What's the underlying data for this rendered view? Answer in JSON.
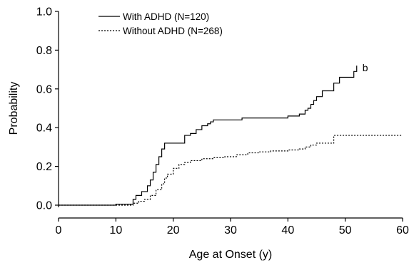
{
  "chart_data": {
    "type": "line",
    "title": "",
    "xlabel": "Age at Onset (y)",
    "ylabel": "Probability",
    "xlim": [
      0,
      60
    ],
    "ylim": [
      0,
      1.0
    ],
    "xticks": [
      0,
      10,
      20,
      30,
      40,
      50,
      60
    ],
    "yticks": [
      0.0,
      0.2,
      0.4,
      0.6,
      0.8,
      1.0
    ],
    "xtick_labels": [
      "0",
      "10",
      "20",
      "30",
      "40",
      "50",
      "60"
    ],
    "ytick_labels": [
      "0.0",
      "0.2",
      "0.4",
      "0.6",
      "0.8",
      "1.0"
    ],
    "grid": false,
    "legend_position": "top-left",
    "step": true,
    "annotation": {
      "text": "b",
      "x": 53,
      "y": 0.71
    },
    "series": [
      {
        "name": "With ADHD (N=120)",
        "line_style": "solid",
        "color": "#000000",
        "x": [
          0,
          10,
          13,
          13.5,
          14.5,
          15.5,
          16,
          16.5,
          17,
          17.5,
          18,
          18.5,
          19,
          20,
          22,
          23,
          24,
          25,
          26,
          26.5,
          27,
          28,
          32,
          40,
          42,
          43,
          43.5,
          44,
          44.5,
          45,
          46,
          48,
          49,
          51.5,
          52
        ],
        "y": [
          0.0,
          0.005,
          0.03,
          0.05,
          0.07,
          0.1,
          0.13,
          0.17,
          0.21,
          0.25,
          0.29,
          0.32,
          0.32,
          0.32,
          0.36,
          0.37,
          0.39,
          0.41,
          0.42,
          0.43,
          0.44,
          0.44,
          0.45,
          0.46,
          0.47,
          0.49,
          0.5,
          0.52,
          0.54,
          0.56,
          0.59,
          0.63,
          0.66,
          0.69,
          0.72
        ]
      },
      {
        "name": "Without ADHD (N=268)",
        "line_style": "dotted",
        "color": "#000000",
        "x": [
          0,
          10,
          13,
          14,
          15,
          16,
          17,
          18,
          18.5,
          19,
          20,
          21,
          22,
          23,
          25,
          27,
          29,
          31,
          33,
          35,
          37,
          40,
          42,
          43,
          44,
          45,
          48,
          50,
          60
        ],
        "y": [
          0.0,
          0.0,
          0.01,
          0.02,
          0.03,
          0.05,
          0.08,
          0.11,
          0.14,
          0.16,
          0.19,
          0.21,
          0.22,
          0.23,
          0.24,
          0.245,
          0.25,
          0.26,
          0.27,
          0.275,
          0.28,
          0.285,
          0.29,
          0.3,
          0.31,
          0.32,
          0.36,
          0.36,
          0.36
        ]
      }
    ]
  }
}
